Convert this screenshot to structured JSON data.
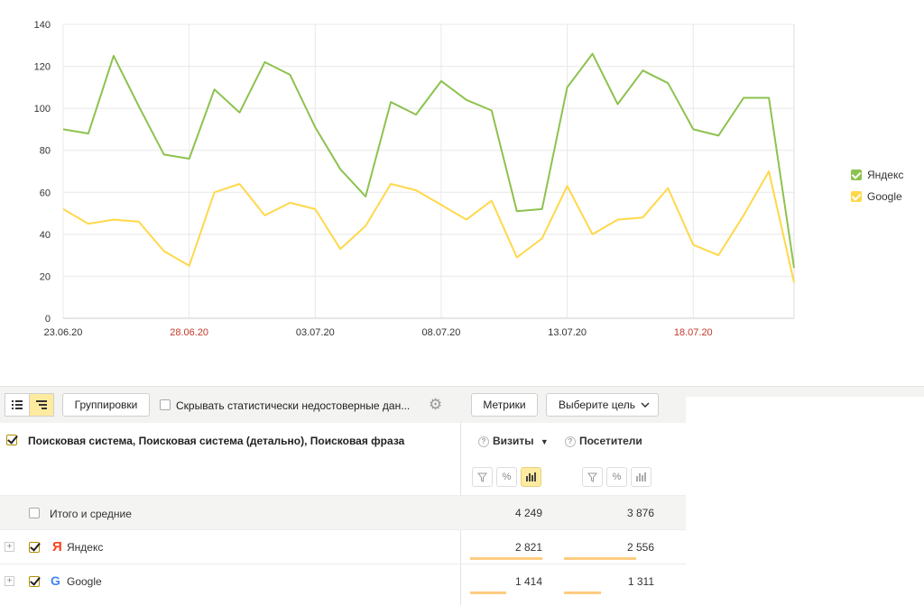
{
  "chart_data": {
    "type": "line",
    "x": [
      "23.06.20",
      "24.06.20",
      "25.06.20",
      "26.06.20",
      "27.06.20",
      "28.06.20",
      "29.06.20",
      "30.06.20",
      "01.07.20",
      "02.07.20",
      "03.07.20",
      "04.07.20",
      "05.07.20",
      "06.07.20",
      "07.07.20",
      "08.07.20",
      "09.07.20",
      "10.07.20",
      "11.07.20",
      "12.07.20",
      "13.07.20",
      "14.07.20",
      "15.07.20",
      "16.07.20",
      "17.07.20",
      "18.07.20",
      "19.07.20",
      "20.07.20",
      "21.07.20",
      "22.07.20"
    ],
    "xticks": [
      {
        "label": "23.06.20",
        "index": 0,
        "weekend": false
      },
      {
        "label": "28.06.20",
        "index": 5,
        "weekend": true
      },
      {
        "label": "03.07.20",
        "index": 10,
        "weekend": false
      },
      {
        "label": "08.07.20",
        "index": 15,
        "weekend": false
      },
      {
        "label": "13.07.20",
        "index": 20,
        "weekend": false
      },
      {
        "label": "18.07.20",
        "index": 25,
        "weekend": true
      }
    ],
    "yticks": [
      0,
      20,
      40,
      60,
      80,
      100,
      120,
      140
    ],
    "ylim": [
      0,
      140
    ],
    "grid": true,
    "legend_position": "right",
    "series": [
      {
        "name": "Яндекс",
        "color": "#8dc24f",
        "values": [
          90,
          88,
          125,
          101,
          78,
          76,
          109,
          98,
          122,
          116,
          91,
          71,
          58,
          103,
          97,
          113,
          104,
          99,
          51,
          52,
          110,
          126,
          102,
          118,
          112,
          90,
          87,
          105,
          105,
          24
        ]
      },
      {
        "name": "Google",
        "color": "#ffd84a",
        "values": [
          52,
          45,
          47,
          46,
          32,
          25,
          60,
          64,
          49,
          55,
          52,
          33,
          44,
          64,
          61,
          54,
          47,
          56,
          29,
          38,
          63,
          40,
          47,
          48,
          62,
          35,
          30,
          49,
          70,
          17
        ]
      }
    ]
  },
  "colors": {
    "weekend_tick": "#c0392b",
    "tick": "#333333",
    "grid": "#e8e8e8",
    "bar": "#ffcc80"
  },
  "toolbar": {
    "group_button": "Группировки",
    "hide_unreliable_label": "Скрывать статистически недостоверные дан...",
    "metrics_button": "Метрики",
    "goal_select": "Выберите цель",
    "list_view_icon": "list-icon",
    "tree_view_icon": "tree-icon",
    "settings_icon": "gear-icon"
  },
  "table": {
    "dimension_header": "Поисковая система, Поисковая система (детально), Поисковая фраза",
    "columns": [
      {
        "label": "Визиты",
        "sort": "▼"
      },
      {
        "label": "Посетители",
        "sort": ""
      }
    ],
    "total": {
      "label": "Итого и средние",
      "visits": "4 249",
      "visitors": "3 876"
    },
    "rows": [
      {
        "label": "Яндекс",
        "icon": "yandex-icon",
        "visits": "2 821",
        "visitors": "2 556",
        "visits_share": 0.66,
        "visitors_share": 0.66
      },
      {
        "label": "Google",
        "icon": "google-icon",
        "visits": "1 414",
        "visitors": "1 311",
        "visits_share": 0.33,
        "visitors_share": 0.34
      }
    ]
  }
}
